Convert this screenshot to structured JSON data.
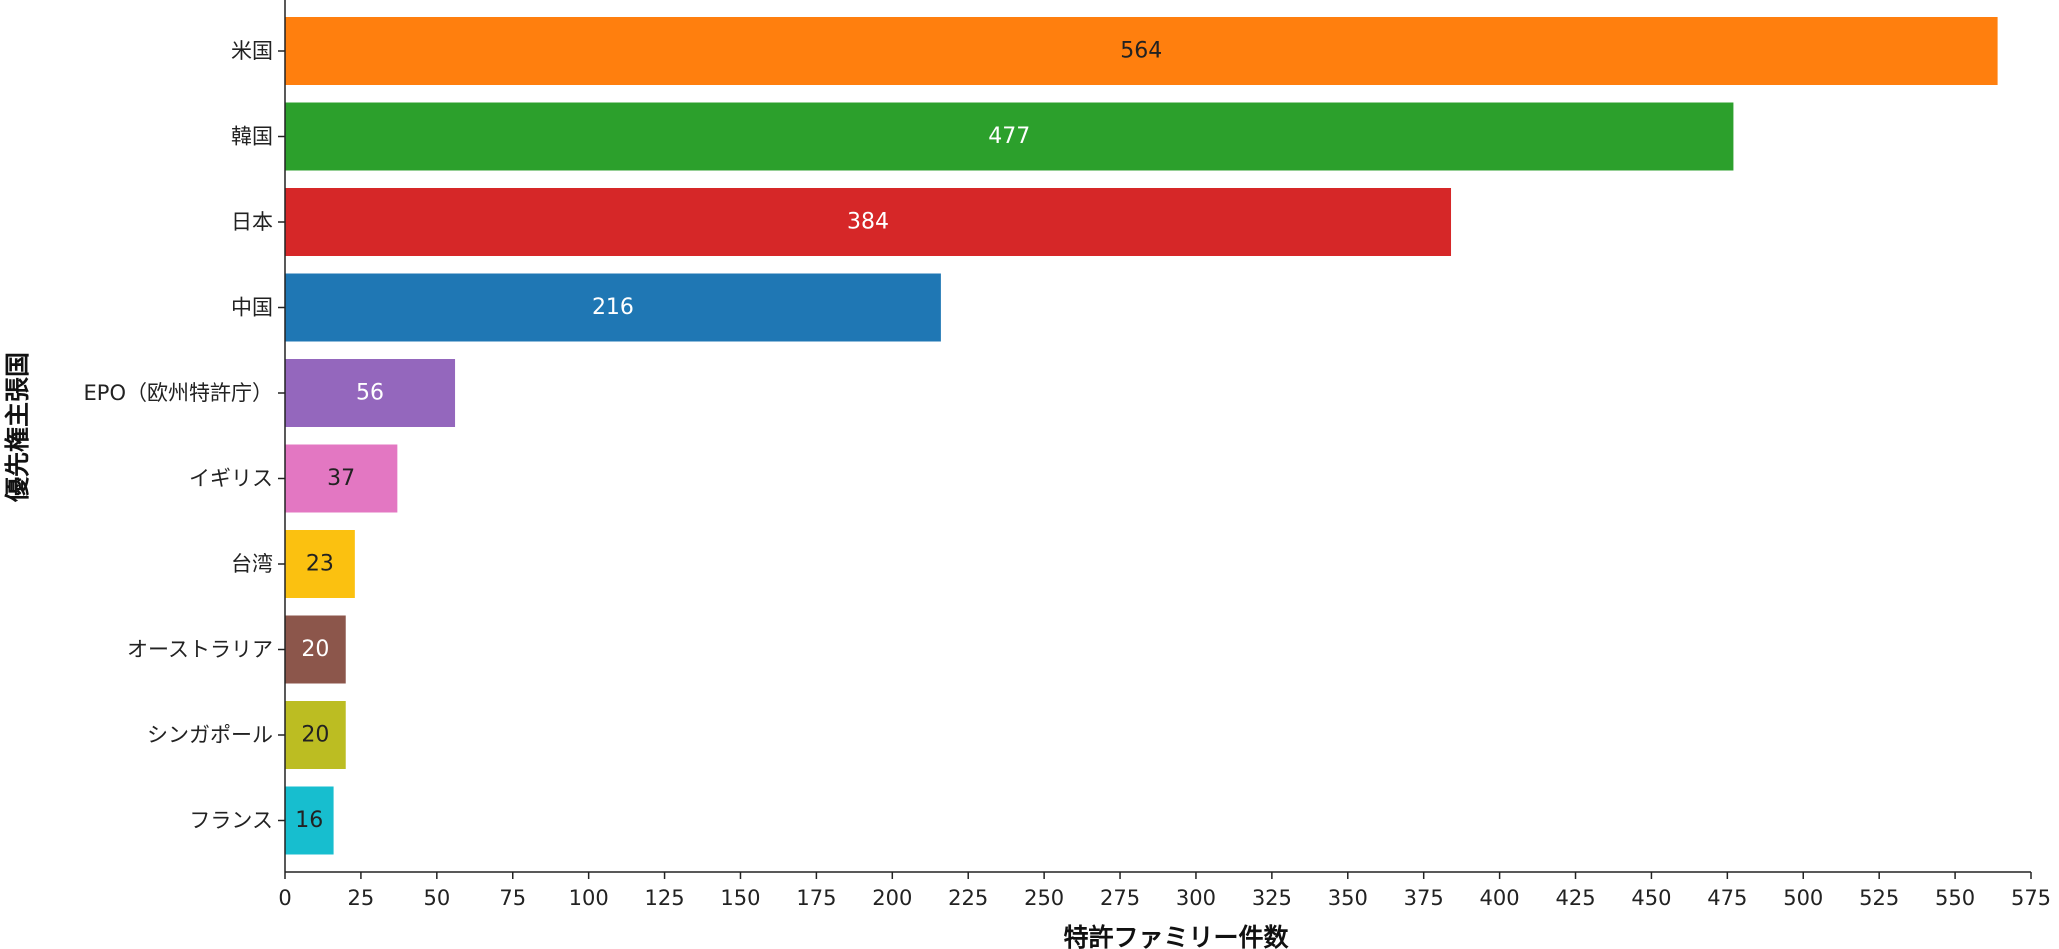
{
  "chart_data": {
    "type": "bar",
    "orientation": "horizontal",
    "xlabel": "特許ファミリー件数",
    "ylabel": "優先権主張国",
    "xlim": [
      0,
      575
    ],
    "xticks": [
      0,
      25,
      50,
      75,
      100,
      125,
      150,
      175,
      200,
      225,
      250,
      275,
      300,
      325,
      350,
      375,
      400,
      425,
      450,
      475,
      500,
      525,
      550,
      575
    ],
    "grid": false,
    "categories": [
      "米国",
      "韓国",
      "日本",
      "中国",
      "EPO（欧州特許庁）",
      "イギリス",
      "台湾",
      "オーストラリア",
      "シンガポール",
      "フランス"
    ],
    "values": [
      564,
      477,
      384,
      216,
      56,
      37,
      23,
      20,
      20,
      16
    ],
    "colors": [
      "#ff7f0e",
      "#2ca02c",
      "#d62728",
      "#1f77b4",
      "#9467bd",
      "#e377c2",
      "#fbc110",
      "#8c564b",
      "#bcbd22",
      "#17becf"
    ],
    "label_colors": [
      "#222222",
      "#ffffff",
      "#ffffff",
      "#ffffff",
      "#ffffff",
      "#222222",
      "#222222",
      "#ffffff",
      "#222222",
      "#222222"
    ]
  }
}
